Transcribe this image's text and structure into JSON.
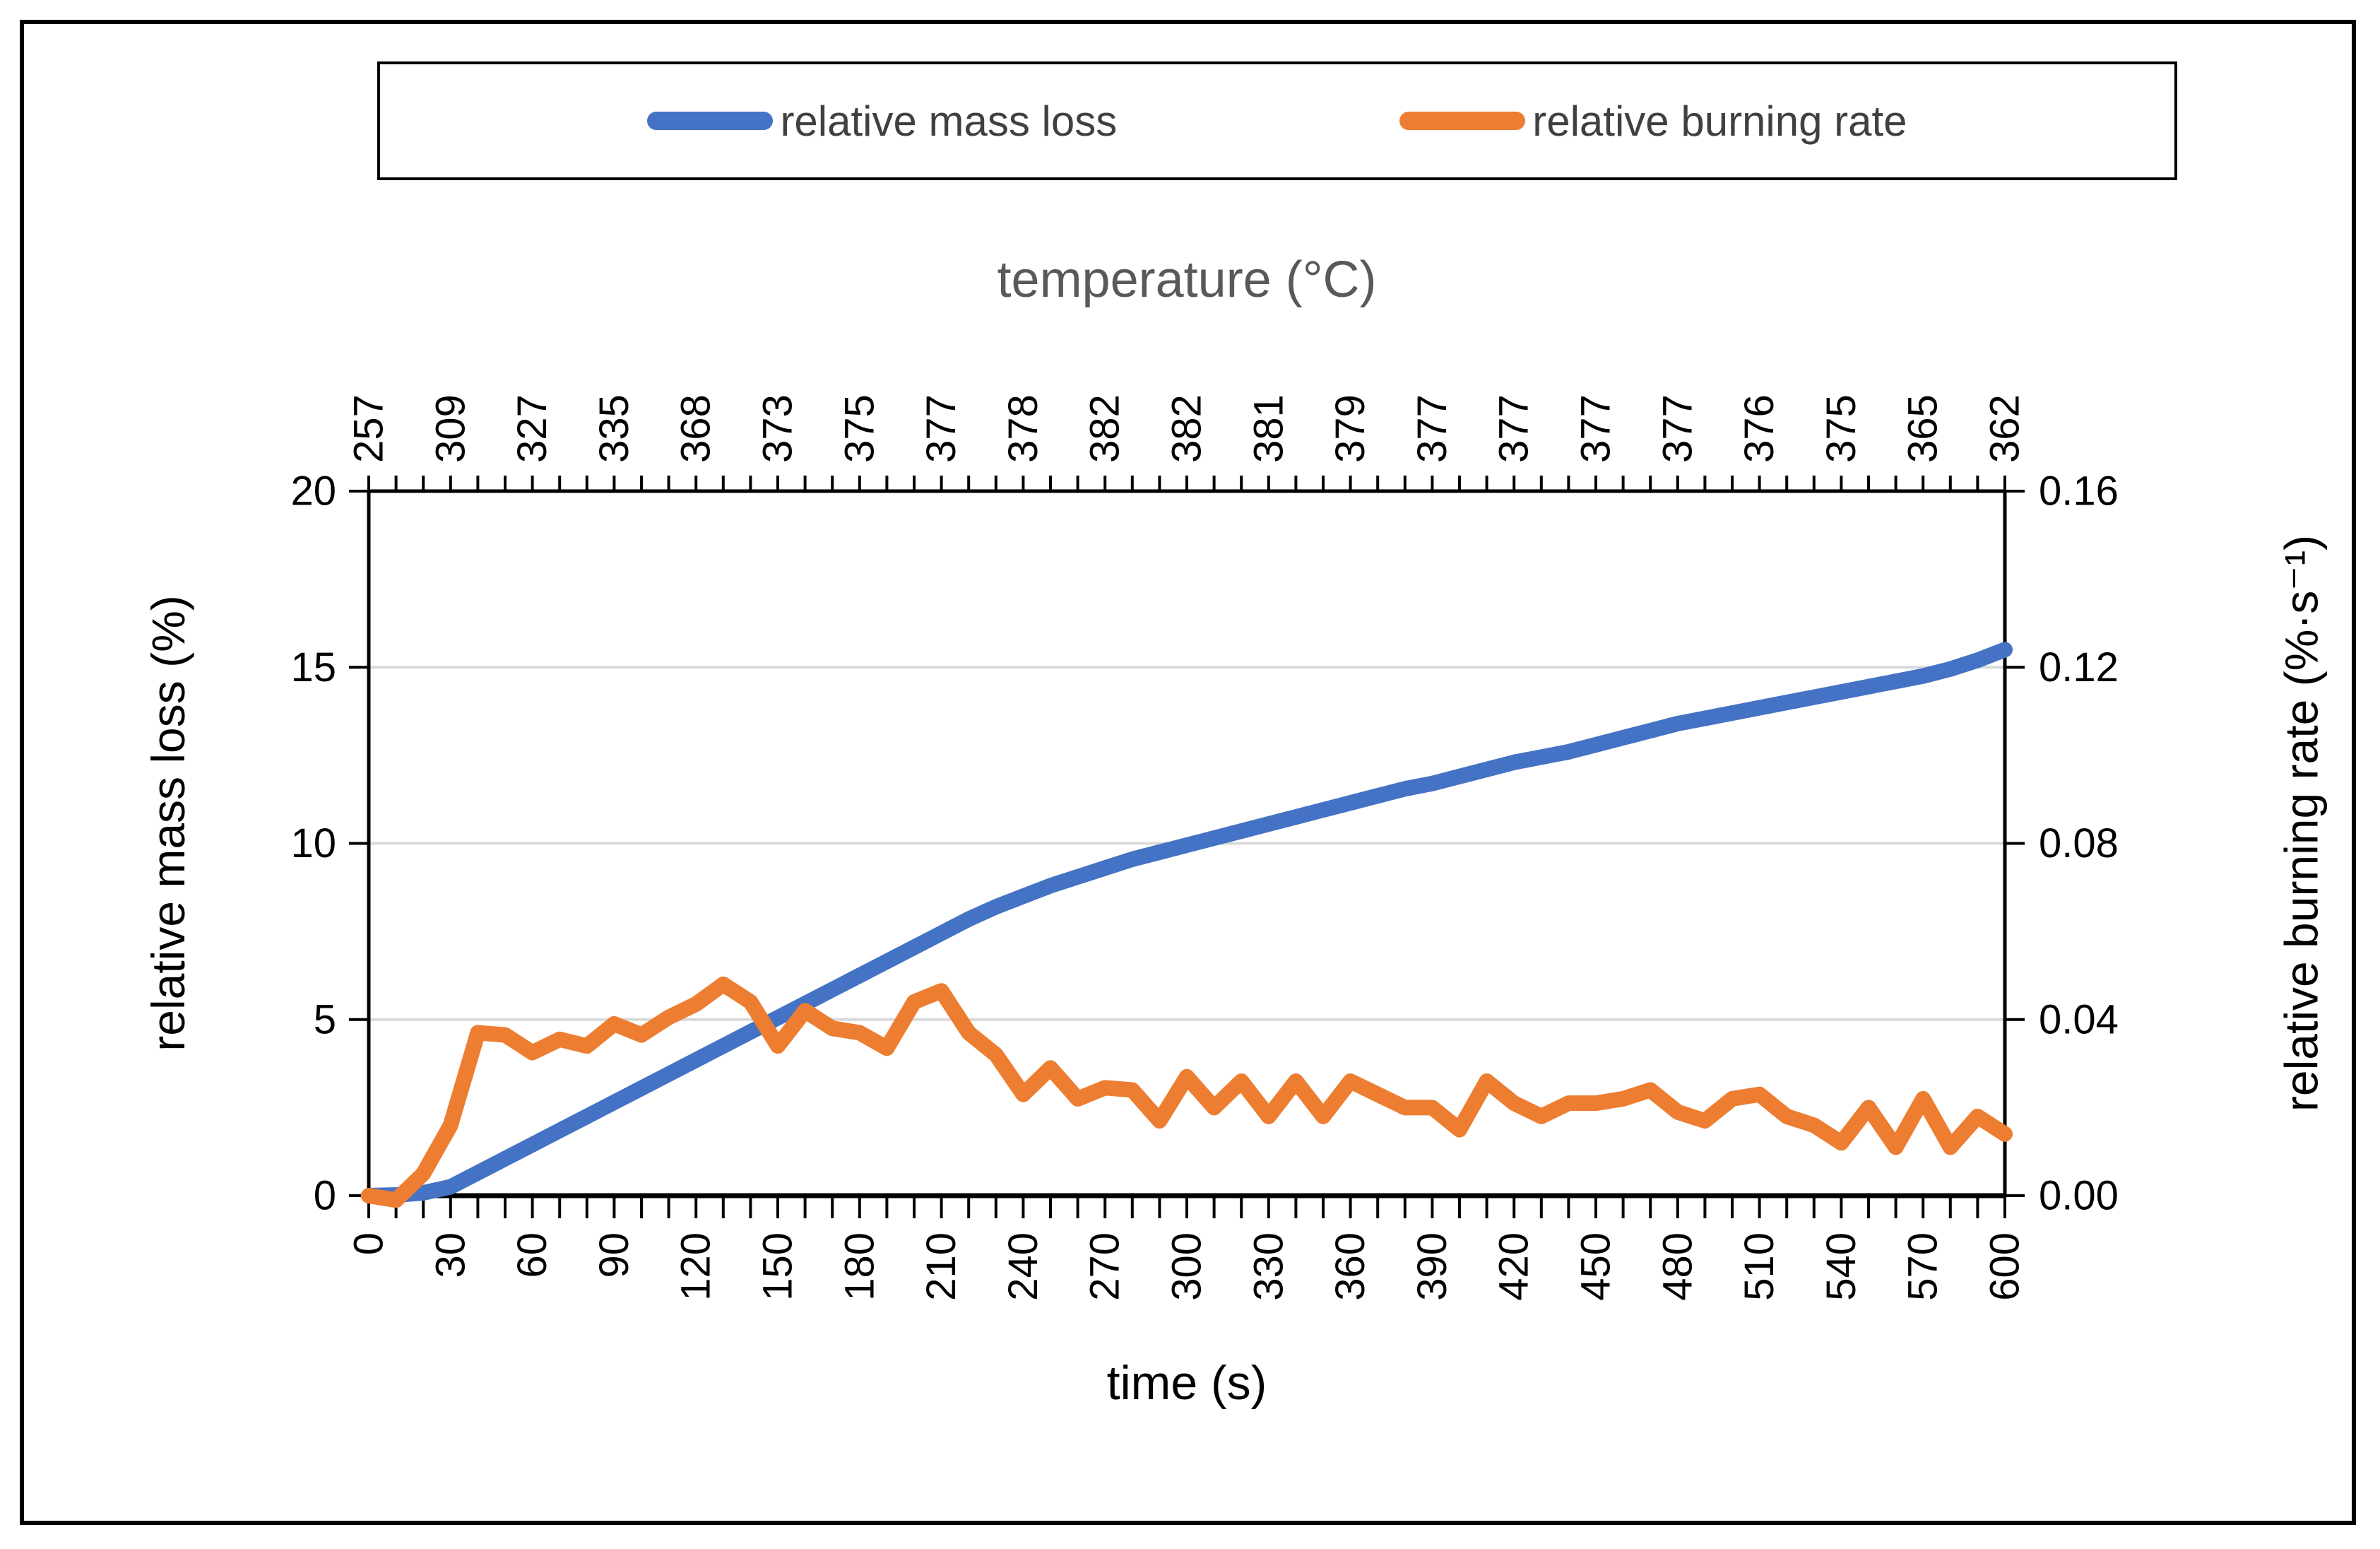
{
  "legend": {
    "items": [
      {
        "label": "relative mass loss",
        "color": "#4472C4"
      },
      {
        "label": "relative burning rate",
        "color": "#ED7D31"
      }
    ]
  },
  "axes": {
    "top": {
      "title": "temperature (°C)"
    },
    "bottom": {
      "title": "time (s)"
    },
    "left": {
      "title": "relative mass loss (%)"
    },
    "right": {
      "title": "relative burning rate (%·s⁻¹)"
    }
  },
  "colors": {
    "mass_loss_line": "#4472C4",
    "burning_rate_line": "#ED7D31",
    "gridline": "#D9D9D9",
    "axis": "#000000",
    "top_title_text": "#595959",
    "legend_text": "#404040"
  },
  "chart_data": {
    "type": "line",
    "title": "",
    "xlabel": "time (s)",
    "xlabel_top": "temperature (°C)",
    "ylabel_left": "relative mass loss (%)",
    "ylabel_right": "relative burning rate (%·s⁻¹)",
    "xlim": [
      0,
      600
    ],
    "ylim_left": [
      0,
      20
    ],
    "ylim_right": [
      0,
      0.16
    ],
    "x_major_tick_step": 30,
    "x_minor_tick_step": 10,
    "grid": "horizontal",
    "legend_position": "top",
    "bottom_tick_labels": [
      "0",
      "30",
      "60",
      "90",
      "120",
      "150",
      "180",
      "210",
      "240",
      "270",
      "300",
      "330",
      "360",
      "390",
      "420",
      "450",
      "480",
      "510",
      "540",
      "570",
      "600"
    ],
    "left_tick_labels": [
      "0",
      "5",
      "10",
      "15",
      "20"
    ],
    "right_tick_labels": [
      "0.00",
      "0.04",
      "0.08",
      "0.12",
      "0.16"
    ],
    "top_temperature_labels": [
      "257",
      "309",
      "327",
      "335",
      "368",
      "373",
      "375",
      "377",
      "378",
      "382",
      "382",
      "381",
      "379",
      "377",
      "377",
      "377",
      "377",
      "376",
      "375",
      "365",
      "362"
    ],
    "x": [
      0,
      10,
      20,
      30,
      40,
      50,
      60,
      70,
      80,
      90,
      100,
      110,
      120,
      130,
      140,
      150,
      160,
      170,
      180,
      190,
      200,
      210,
      220,
      230,
      240,
      250,
      260,
      270,
      280,
      290,
      300,
      310,
      320,
      330,
      340,
      350,
      360,
      370,
      380,
      390,
      400,
      410,
      420,
      430,
      440,
      450,
      460,
      470,
      480,
      490,
      500,
      510,
      520,
      530,
      540,
      550,
      560,
      570,
      580,
      590,
      600
    ],
    "series": [
      {
        "name": "relative mass loss",
        "axis": "left",
        "color": "#4472C4",
        "values": [
          0,
          0.02,
          0.08,
          0.25,
          0.65,
          1.05,
          1.45,
          1.85,
          2.25,
          2.65,
          3.05,
          3.45,
          3.85,
          4.25,
          4.65,
          5.05,
          5.45,
          5.85,
          6.25,
          6.65,
          7.05,
          7.45,
          7.85,
          8.2,
          8.5,
          8.8,
          9.05,
          9.3,
          9.55,
          9.75,
          9.95,
          10.15,
          10.35,
          10.55,
          10.75,
          10.95,
          11.15,
          11.35,
          11.55,
          11.7,
          11.9,
          12.1,
          12.3,
          12.45,
          12.6,
          12.8,
          13.0,
          13.2,
          13.4,
          13.55,
          13.7,
          13.85,
          14.0,
          14.15,
          14.3,
          14.45,
          14.6,
          14.75,
          14.95,
          15.2,
          15.5
        ]
      },
      {
        "name": "relative burning rate",
        "axis": "right",
        "color": "#ED7D31",
        "values": [
          0,
          -0.001,
          0.005,
          0.016,
          0.037,
          0.0365,
          0.0325,
          0.0355,
          0.034,
          0.039,
          0.0365,
          0.0405,
          0.0435,
          0.048,
          0.044,
          0.034,
          0.042,
          0.038,
          0.037,
          0.0335,
          0.044,
          0.0465,
          0.037,
          0.032,
          0.023,
          0.029,
          0.022,
          0.0245,
          0.024,
          0.017,
          0.027,
          0.02,
          0.026,
          0.018,
          0.026,
          0.018,
          0.026,
          0.023,
          0.02,
          0.02,
          0.015,
          0.026,
          0.021,
          0.018,
          0.021,
          0.021,
          0.022,
          0.024,
          0.019,
          0.017,
          0.022,
          0.023,
          0.018,
          0.016,
          0.012,
          0.02,
          0.011,
          0.022,
          0.011,
          0.018,
          0.014
        ]
      }
    ]
  }
}
